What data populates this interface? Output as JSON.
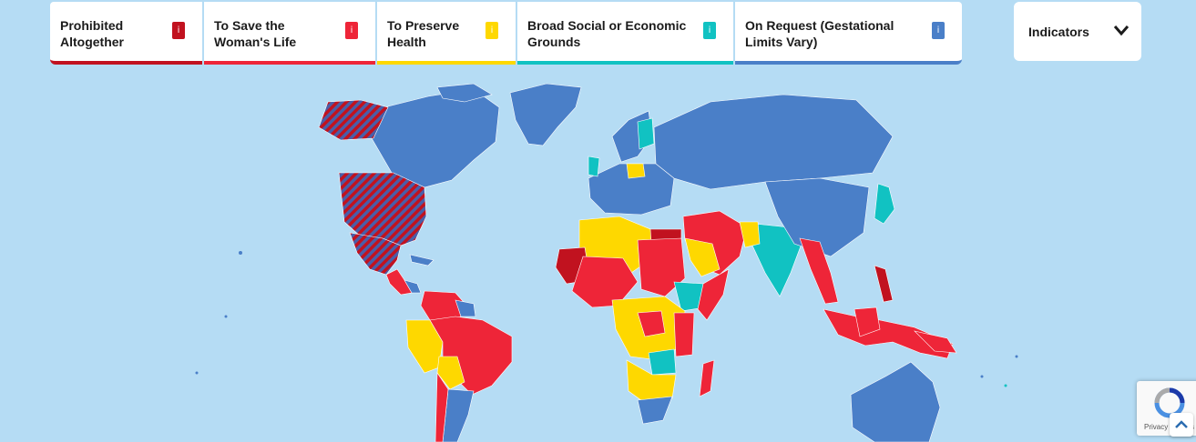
{
  "legend": [
    {
      "label": "Prohibited Altogether",
      "color": "#c1121f",
      "icon": "info-icon",
      "info": "i"
    },
    {
      "label": "To Save the Woman's Life",
      "color": "#ee2538",
      "icon": "info-icon",
      "info": "i"
    },
    {
      "label": "To Preserve Health",
      "color": "#fed800",
      "icon": "info-icon",
      "info": "i"
    },
    {
      "label": "Broad Social or Economic Grounds",
      "color": "#11c2c2",
      "icon": "info-icon",
      "info": "i"
    },
    {
      "label": "On Request (Gestational Limits Vary)",
      "color": "#4a7fc8",
      "icon": "info-icon",
      "info": "i"
    }
  ],
  "indicators": {
    "label": "Indicators",
    "icon": "chevron-down-icon"
  },
  "map": {
    "ocean_color": "#b5dcf4",
    "hatched_regions": "United States (varies by state)"
  },
  "recaptcha": {
    "text": "Privacy - Terms",
    "icon": "recaptcha-icon"
  },
  "scroll_top": {
    "icon": "chevron-up-icon"
  }
}
